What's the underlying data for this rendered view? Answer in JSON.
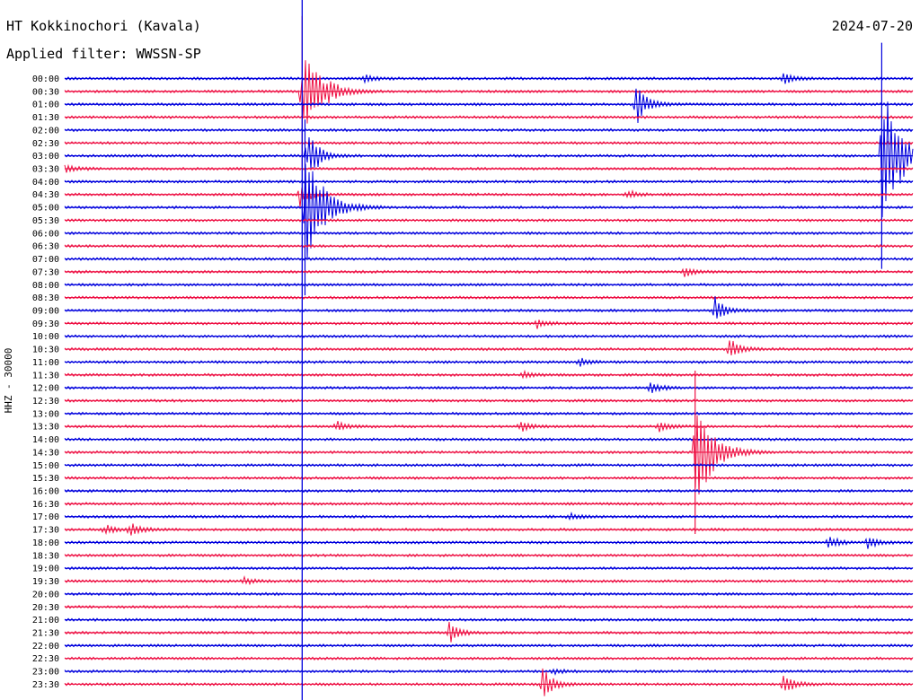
{
  "header": {
    "station": "HT Kokkinochori (Kavala)",
    "filter": "Applied filter: WWSSN-SP",
    "date": "2024-07-20"
  },
  "chart_data": {
    "type": "line",
    "chart_kind": "helicorder",
    "ylabel": "HHZ - 30000",
    "row_interval_minutes": 30,
    "row_labels": [
      "00:00",
      "00:30",
      "01:00",
      "01:30",
      "02:00",
      "02:30",
      "03:00",
      "03:30",
      "04:00",
      "04:30",
      "05:00",
      "05:30",
      "06:00",
      "06:30",
      "07:00",
      "07:30",
      "08:00",
      "08:30",
      "09:00",
      "09:30",
      "10:00",
      "10:30",
      "11:00",
      "11:30",
      "12:00",
      "12:30",
      "13:00",
      "13:30",
      "14:00",
      "14:30",
      "15:00",
      "15:30",
      "16:00",
      "16:30",
      "17:00",
      "17:30",
      "18:00",
      "18:30",
      "19:00",
      "19:30",
      "20:00",
      "20:30",
      "21:00",
      "21:30",
      "22:00",
      "22:30",
      "23:00",
      "23:30"
    ],
    "row_colors": [
      "#0000dd",
      "#ee1144"
    ],
    "grid": false,
    "x_range_minutes": [
      0,
      30
    ],
    "events": [
      {
        "row": 0,
        "t_min": 10.6,
        "amp": 4
      },
      {
        "row": 0,
        "t_min": 25.4,
        "amp": 7
      },
      {
        "row": 1,
        "t_min": 8.4,
        "amp": 60,
        "big": true
      },
      {
        "row": 2,
        "t_min": 20.2,
        "amp": 25
      },
      {
        "row": 6,
        "t_min": 8.6,
        "amp": 35
      },
      {
        "row": 6,
        "t_min": 28.9,
        "amp": 90,
        "big": true
      },
      {
        "row": 7,
        "t_min": 0.0,
        "amp": 5
      },
      {
        "row": 9,
        "t_min": 8.3,
        "amp": 14
      },
      {
        "row": 9,
        "t_min": 19.9,
        "amp": 5
      },
      {
        "row": 10,
        "t_min": 8.5,
        "amp": 70,
        "big": true
      },
      {
        "row": 15,
        "t_min": 21.9,
        "amp": 6
      },
      {
        "row": 18,
        "t_min": 23.0,
        "amp": 15
      },
      {
        "row": 19,
        "t_min": 16.7,
        "amp": 5
      },
      {
        "row": 21,
        "t_min": 23.5,
        "amp": 14
      },
      {
        "row": 22,
        "t_min": 18.2,
        "amp": 5
      },
      {
        "row": 23,
        "t_min": 16.2,
        "amp": 4
      },
      {
        "row": 24,
        "t_min": 20.7,
        "amp": 8
      },
      {
        "row": 27,
        "t_min": 9.6,
        "amp": 6
      },
      {
        "row": 27,
        "t_min": 16.1,
        "amp": 6
      },
      {
        "row": 27,
        "t_min": 21.0,
        "amp": 6
      },
      {
        "row": 29,
        "t_min": 22.3,
        "amp": 65,
        "big": true
      },
      {
        "row": 34,
        "t_min": 17.8,
        "amp": 4
      },
      {
        "row": 35,
        "t_min": 1.4,
        "amp": 6
      },
      {
        "row": 35,
        "t_min": 2.3,
        "amp": 8
      },
      {
        "row": 36,
        "t_min": 27.0,
        "amp": 8
      },
      {
        "row": 36,
        "t_min": 28.4,
        "amp": 8
      },
      {
        "row": 39,
        "t_min": 6.3,
        "amp": 4
      },
      {
        "row": 43,
        "t_min": 13.6,
        "amp": 12
      },
      {
        "row": 46,
        "t_min": 17.3,
        "amp": 3
      },
      {
        "row": 47,
        "t_min": 16.9,
        "amp": 20
      },
      {
        "row": 47,
        "t_min": 25.4,
        "amp": 14
      }
    ]
  }
}
